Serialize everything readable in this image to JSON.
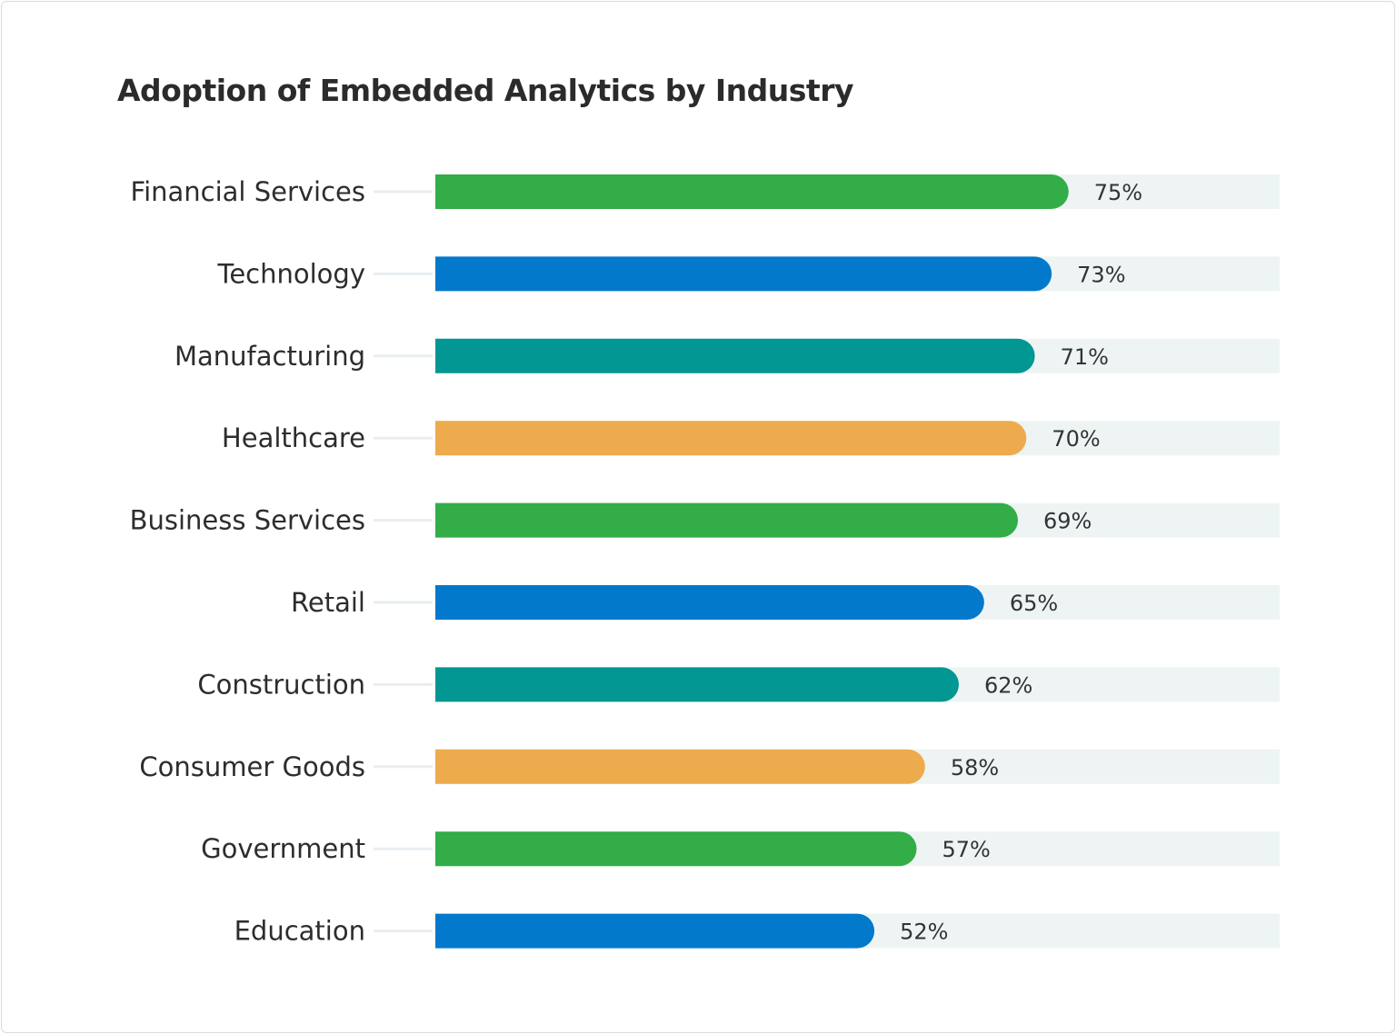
{
  "chart_data": {
    "type": "bar",
    "orientation": "horizontal",
    "title": "Adoption of Embedded Analytics by Industry",
    "categories": [
      "Financial Services",
      "Technology",
      "Manufacturing",
      "Healthcare",
      "Business Services",
      "Retail",
      "Construction",
      "Consumer Goods",
      "Government",
      "Education"
    ],
    "values": [
      75,
      73,
      71,
      70,
      69,
      65,
      62,
      58,
      57,
      52
    ],
    "value_labels": [
      "75%",
      "73%",
      "71%",
      "70%",
      "69%",
      "65%",
      "62%",
      "58%",
      "57%",
      "52%"
    ],
    "colors": [
      "#32ad48",
      "#0279cb",
      "#029792",
      "#edab4d",
      "#32ad48",
      "#0279cb",
      "#029792",
      "#edab4d",
      "#32ad48",
      "#0279cb"
    ],
    "track_color": "#eef4f4",
    "xlim": [
      0,
      100
    ],
    "grid": false,
    "legend": "none"
  }
}
